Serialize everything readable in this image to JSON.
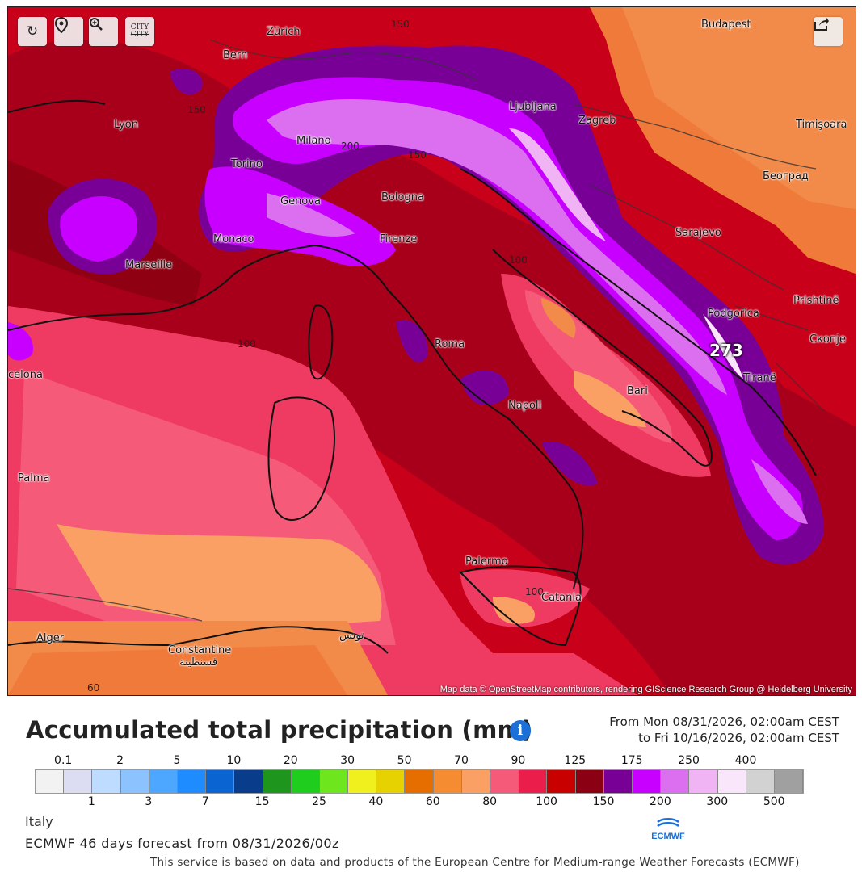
{
  "map": {
    "attribution": "Map data © OpenStreetMap contributors, rendering GIScience Research Group @ Heidelberg University",
    "max_value_label": "273",
    "contour_labels": [
      "150",
      "150",
      "200",
      "150",
      "100",
      "100",
      "100",
      "60"
    ],
    "cities": [
      {
        "name": "Zürich"
      },
      {
        "name": "Bern"
      },
      {
        "name": "Budapest"
      },
      {
        "name": "Lyon"
      },
      {
        "name": "Milano"
      },
      {
        "name": "Ljubljana"
      },
      {
        "name": "Zagreb"
      },
      {
        "name": "Timişoara"
      },
      {
        "name": "Torino"
      },
      {
        "name": "Bologna"
      },
      {
        "name": "Genova"
      },
      {
        "name": "Београд"
      },
      {
        "name": "Monaco"
      },
      {
        "name": "Firenze"
      },
      {
        "name": "Sarajevo"
      },
      {
        "name": "Marseille"
      },
      {
        "name": "Podgorica"
      },
      {
        "name": "Prishtinë"
      },
      {
        "name": "Roma"
      },
      {
        "name": "Скопје"
      },
      {
        "name": "celona"
      },
      {
        "name": "Tiranë"
      },
      {
        "name": "Bari"
      },
      {
        "name": "Napoli"
      },
      {
        "name": "Palma"
      },
      {
        "name": "Palermo"
      },
      {
        "name": "Catania"
      },
      {
        "name": "Alger"
      },
      {
        "name": "Constantine"
      },
      {
        "name": "قسنطينة"
      },
      {
        "name": "تونس"
      }
    ],
    "accent_colors": {
      "purple": "#7a1fa8",
      "magenta": "#c41fe0",
      "red": "#c8001a",
      "dark_red": "#8f0013",
      "pink": "#ef3b62",
      "orange": "#f28a4a"
    }
  },
  "toolbar": {
    "reload_icon": "reload-icon",
    "locate_icon": "location-pin-icon",
    "zoom_icon": "zoom-in-icon",
    "city_label": "CITY",
    "share_icon": "share-icon"
  },
  "header": {
    "title": "Accumulated total precipitation (mm)",
    "info_label": "i",
    "date_from": "From Mon 08/31/2026, 02:00am CEST",
    "date_to": "to Fri 10/16/2026, 02:00am CEST"
  },
  "legend": {
    "top_ticks": [
      "0.1",
      "2",
      "5",
      "10",
      "20",
      "30",
      "50",
      "70",
      "90",
      "125",
      "175",
      "250",
      "400"
    ],
    "bottom_ticks": [
      "1",
      "3",
      "7",
      "15",
      "25",
      "40",
      "60",
      "80",
      "100",
      "150",
      "200",
      "300",
      "500"
    ],
    "colors": [
      "#f2f2f2",
      "#dcdcf2",
      "#bedcff",
      "#8cc3ff",
      "#4ea7ff",
      "#1e8cff",
      "#0a64d2",
      "#0a3c8c",
      "#1e961e",
      "#1ecd1e",
      "#6ee61e",
      "#f0f01e",
      "#e6d200",
      "#e66e00",
      "#f58c32",
      "#faa064",
      "#f55a78",
      "#eb1e4b",
      "#c80000",
      "#8c0014",
      "#780096",
      "#c800ff",
      "#dc6ef0",
      "#f0b4f5",
      "#fae6fa",
      "#d2d2d2",
      "#a0a0a0"
    ]
  },
  "footer": {
    "region": "Italy",
    "forecast": "ECMWF 46 days forecast from 08/31/2026/00z",
    "notice": "This service is based on data and products of the European Centre for Medium-range Weather Forecasts (ECMWF)",
    "logo_text": "ECMWF"
  }
}
